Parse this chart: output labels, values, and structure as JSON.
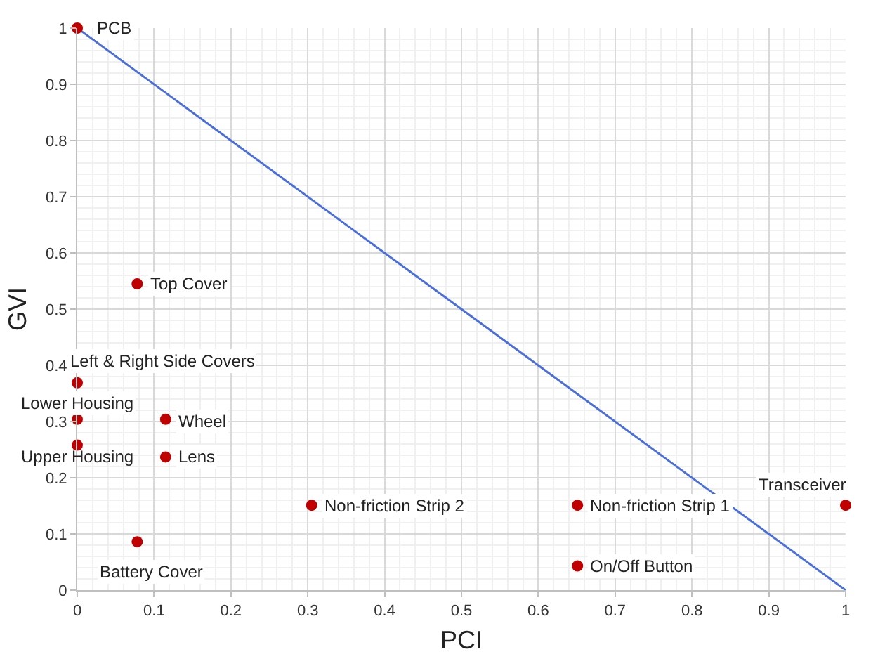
{
  "chart_data": {
    "type": "scatter",
    "xlabel": "PCI",
    "ylabel": "GVI",
    "xlim": [
      0,
      1
    ],
    "ylim": [
      0,
      1
    ],
    "xticks": [
      0,
      0.1,
      0.2,
      0.3,
      0.4,
      0.5,
      0.6,
      0.7,
      0.8,
      0.9,
      1
    ],
    "yticks": [
      0,
      0.1,
      0.2,
      0.3,
      0.4,
      0.5,
      0.6,
      0.7,
      0.8,
      0.9,
      1
    ],
    "grid": true,
    "marker": "circle",
    "series": [
      {
        "type": "line",
        "color": "#4a6fdc",
        "x": [
          0,
          1
        ],
        "values": [
          1,
          0
        ],
        "marker": "none"
      },
      {
        "color": "#c00000",
        "x": [
          0,
          0.078,
          0,
          0,
          0.115,
          0,
          0.115,
          0.305,
          0.651,
          1,
          0.078,
          0.651
        ],
        "values": [
          1,
          0.545,
          0.369,
          0.304,
          0.304,
          0.258,
          0.237,
          0.151,
          0.151,
          0.151,
          0.086,
          0.043
        ]
      }
    ],
    "annotations": [
      {
        "text": "PCB",
        "x": 0,
        "y": 1
      },
      {
        "text": "Top Cover",
        "x": 0.078,
        "y": 0.545
      },
      {
        "text": "Left & Right Side Covers",
        "x": 0,
        "y": 0.369
      },
      {
        "text": "Lower Housing",
        "x": 0,
        "y": 0.304
      },
      {
        "text": "Wheel",
        "x": 0.115,
        "y": 0.304
      },
      {
        "text": "Upper Housing",
        "x": 0,
        "y": 0.258
      },
      {
        "text": "Lens",
        "x": 0.115,
        "y": 0.237
      },
      {
        "text": "Non-friction Strip 2",
        "x": 0.305,
        "y": 0.151
      },
      {
        "text": "Non-friction Strip 1",
        "x": 0.651,
        "y": 0.151
      },
      {
        "text": "Transceiver",
        "x": 1,
        "y": 0.151
      },
      {
        "text": "Battery Cover",
        "x": 0.078,
        "y": 0.086
      },
      {
        "text": "On/Off Button",
        "x": 0.651,
        "y": 0.043
      }
    ]
  }
}
